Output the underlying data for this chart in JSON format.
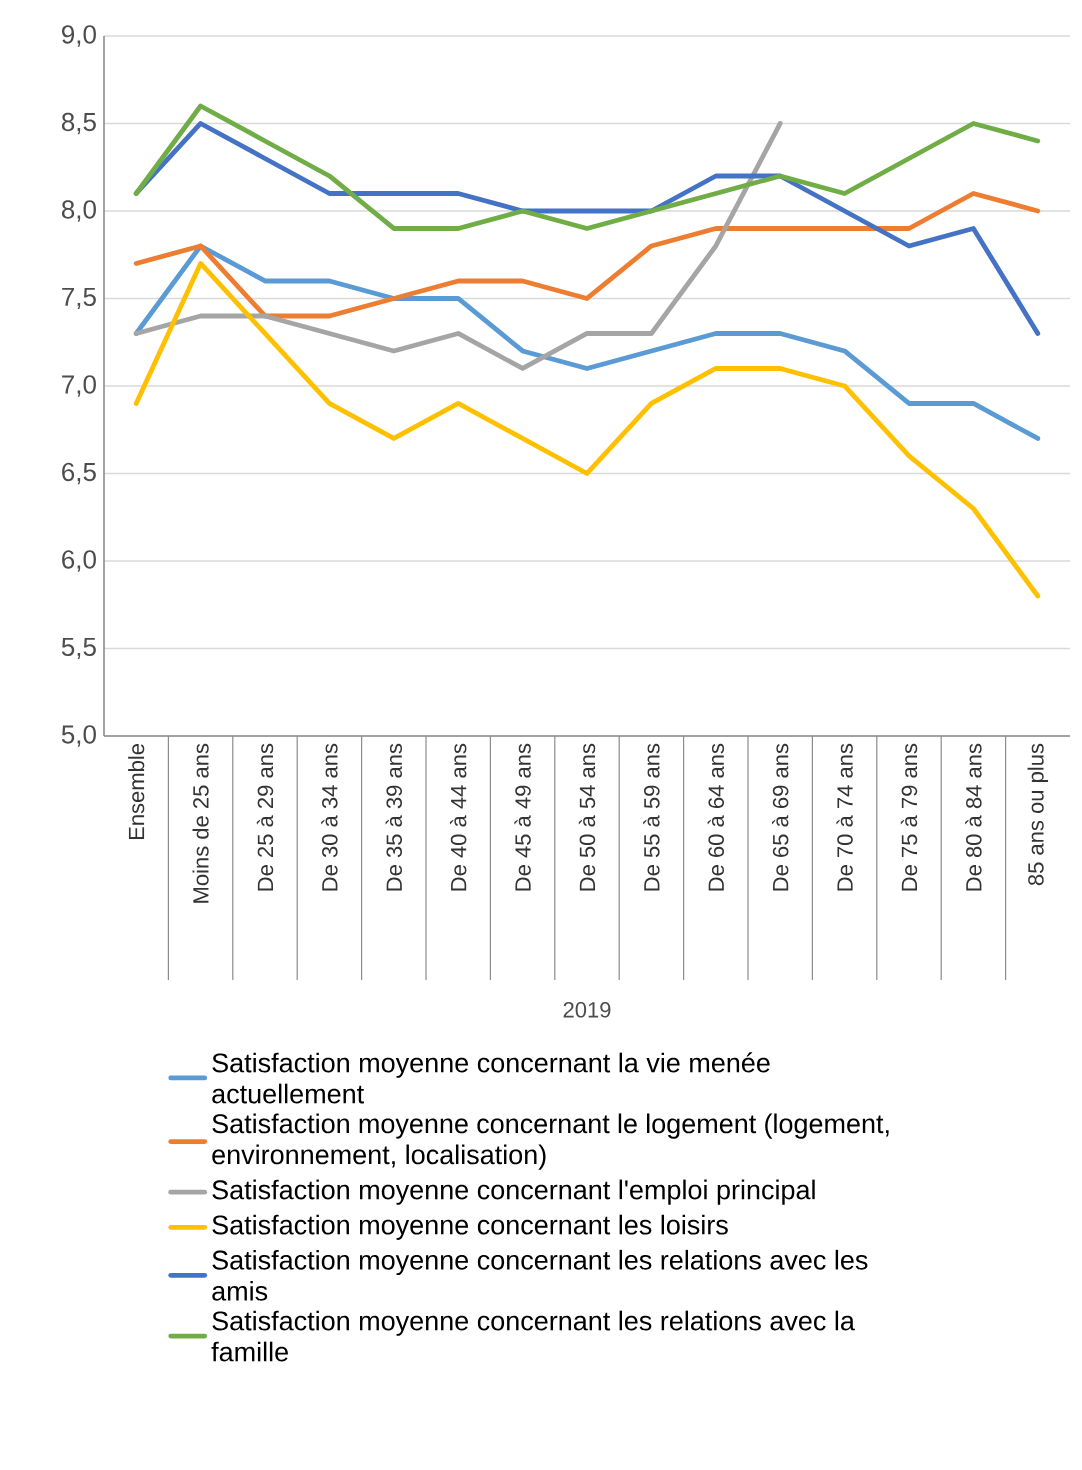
{
  "chart_data": {
    "type": "line",
    "categories": [
      "Ensemble",
      "Moins de 25 ans",
      "De 25 à 29 ans",
      "De 30 à 34 ans",
      "De 35 à 39 ans",
      "De 40 à 44 ans",
      "De 45 à 49 ans",
      "De 50 à 54 ans",
      "De 55 à 59 ans",
      "De 60 à 64 ans",
      "De 65 à 69 ans",
      "De 70 à 74 ans",
      "De 75 à 79 ans",
      "De 80 à 84 ans",
      "85 ans ou plus"
    ],
    "xlabel": "2019",
    "series": [
      {
        "name": "Satisfaction moyenne concernant la vie menée actuellement",
        "color": "#5b9bd5",
        "values": [
          7.3,
          7.8,
          7.6,
          7.6,
          7.5,
          7.5,
          7.2,
          7.1,
          7.2,
          7.3,
          7.3,
          7.2,
          6.9,
          6.9,
          6.7
        ]
      },
      {
        "name": "Satisfaction moyenne concernant le logement (logement, environnement, localisation)",
        "color": "#ed7d31",
        "values": [
          7.7,
          7.8,
          7.4,
          7.4,
          7.5,
          7.6,
          7.6,
          7.5,
          7.8,
          7.9,
          7.9,
          7.9,
          7.9,
          8.1,
          8.0
        ]
      },
      {
        "name": "Satisfaction moyenne concernant l'emploi principal",
        "color": "#a5a5a5",
        "values": [
          7.3,
          7.4,
          7.4,
          7.3,
          7.2,
          7.3,
          7.1,
          7.3,
          7.3,
          7.8,
          8.5,
          null,
          null,
          null,
          null
        ]
      },
      {
        "name": "Satisfaction moyenne concernant les loisirs",
        "color": "#ffc000",
        "values": [
          6.9,
          7.7,
          7.3,
          6.9,
          6.7,
          6.9,
          6.7,
          6.5,
          6.9,
          7.1,
          7.1,
          7.0,
          6.6,
          6.3,
          5.8
        ]
      },
      {
        "name": "Satisfaction moyenne concernant les relations avec les amis",
        "color": "#4472c4",
        "values": [
          8.1,
          8.5,
          8.3,
          8.1,
          8.1,
          8.1,
          8.0,
          8.0,
          8.0,
          8.2,
          8.2,
          8.0,
          7.8,
          7.9,
          7.3
        ]
      },
      {
        "name": "Satisfaction moyenne concernant les relations avec la famille",
        "color": "#70ad47",
        "values": [
          8.1,
          8.6,
          8.4,
          8.2,
          7.9,
          7.9,
          8.0,
          7.9,
          8.0,
          8.1,
          8.2,
          8.1,
          8.3,
          8.5,
          8.4
        ]
      }
    ],
    "ylim": [
      5,
      9
    ],
    "yticks": [
      {
        "value": 5,
        "label": "5,0"
      },
      {
        "value": 5.5,
        "label": "5,5"
      },
      {
        "value": 6,
        "label": "6,0"
      },
      {
        "value": 6.5,
        "label": "6,5"
      },
      {
        "value": 7,
        "label": "7,0"
      },
      {
        "value": 7.5,
        "label": "7,5"
      },
      {
        "value": 8,
        "label": "8,0"
      },
      {
        "value": 8.5,
        "label": "8,5"
      },
      {
        "value": 9,
        "label": "9,0"
      }
    ],
    "grid": "y",
    "legend": "bottom",
    "line_style": "solid"
  }
}
